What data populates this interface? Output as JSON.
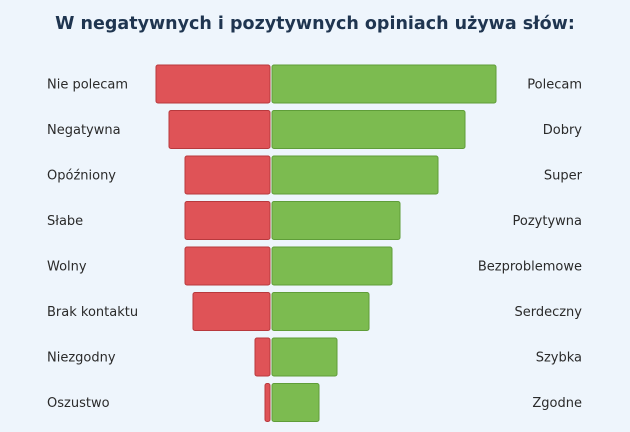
{
  "chart_data": {
    "type": "bar",
    "title": "W negatywnych i pozytywnych opiniach używa słów:",
    "series": [
      {
        "name": "",
        "sentiment": "negative",
        "color": "#df5357",
        "categories": [
          "Nie polecam",
          "Negatywna",
          "Opóźniony",
          "Słabe",
          "Wolny",
          "Brak kontaktu",
          "Niezgodny",
          "Oszustwo"
        ],
        "values": [
          114,
          101,
          85,
          85,
          85,
          77,
          15,
          5
        ]
      },
      {
        "name": "",
        "sentiment": "positive",
        "color": "#7cbb50",
        "categories": [
          "Polecam",
          "Dobry",
          "Super",
          "Pozytywna",
          "Bezproblemowe",
          "Serdeczny",
          "Szybka",
          "Zgodne"
        ],
        "values": [
          224,
          193,
          166,
          128,
          120,
          97,
          65,
          47
        ]
      }
    ],
    "orientation": "horizontal-diverging",
    "axes_visible": false,
    "grid": false,
    "legend": "none"
  }
}
